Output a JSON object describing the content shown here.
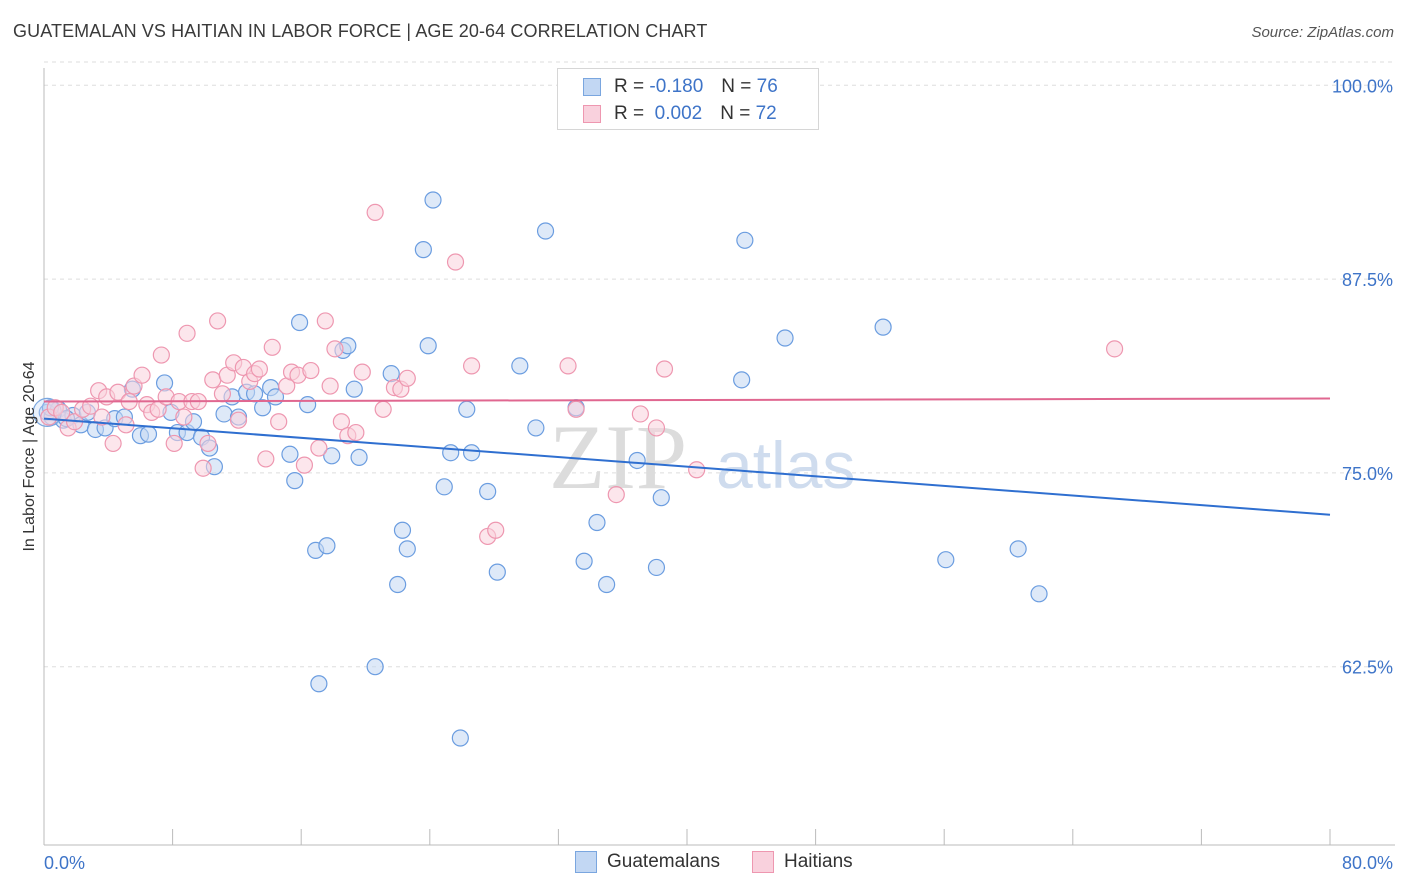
{
  "title": "GUATEMALAN VS HAITIAN IN LABOR FORCE | AGE 20-64 CORRELATION CHART",
  "source": "Source: ZipAtlas.com",
  "watermark": {
    "zip": "ZIP",
    "atlas": "atlas"
  },
  "legend": {
    "r_label": "R =",
    "n_label": "N =",
    "rows": [
      {
        "r": "-0.180",
        "n": "76",
        "color": "#a9c7ee",
        "border": "#7aa6df"
      },
      {
        "r": "0.002",
        "n": "72",
        "color": "#f8c3d2",
        "border": "#ee97b0"
      }
    ]
  },
  "bottom_legend": [
    {
      "label": "Guatemalans",
      "color": "#c2d7f3",
      "border": "#7aa6df"
    },
    {
      "label": "Haitians",
      "color": "#f9d1dd",
      "border": "#ee97b0"
    }
  ],
  "chart_data": {
    "type": "scatter",
    "title": "GUATEMALAN VS HAITIAN IN LABOR FORCE | AGE 20-64 CORRELATION CHART",
    "xlabel": "",
    "ylabel": "In Labor Force | Age 20-64",
    "xlim": [
      0,
      80
    ],
    "ylim": [
      51.0,
      101.5
    ],
    "x_tick_labels": [
      "0.0%",
      "80.0%"
    ],
    "y_ticks": [
      62.5,
      75.0,
      87.5,
      100.0
    ],
    "y_tick_labels": [
      "62.5%",
      "75.0%",
      "87.5%",
      "100.0%"
    ],
    "grid": true,
    "legend_position": "top-center",
    "series": [
      {
        "name": "Guatemalans",
        "color": "#6b9de0",
        "fill": "#c2d7f3",
        "trend": {
          "x0": 0,
          "y0": 78.5,
          "x1": 80,
          "y1": 72.3,
          "color": "#2f6fd0"
        },
        "points": [
          [
            0.2,
            78.9
          ],
          [
            0.5,
            78.6
          ],
          [
            0.9,
            79.1
          ],
          [
            1.2,
            78.4
          ],
          [
            1.8,
            78.7
          ],
          [
            2.3,
            78.1
          ],
          [
            2.7,
            78.9
          ],
          [
            3.2,
            77.8
          ],
          [
            3.8,
            77.9
          ],
          [
            4.4,
            78.5
          ],
          [
            5.0,
            78.6
          ],
          [
            5.5,
            80.4
          ],
          [
            6.0,
            77.4
          ],
          [
            6.5,
            77.5
          ],
          [
            7.5,
            80.8
          ],
          [
            7.9,
            78.9
          ],
          [
            8.3,
            77.6
          ],
          [
            8.9,
            77.6
          ],
          [
            9.3,
            78.3
          ],
          [
            9.8,
            77.3
          ],
          [
            10.3,
            76.6
          ],
          [
            10.6,
            75.4
          ],
          [
            11.2,
            78.8
          ],
          [
            11.7,
            79.9
          ],
          [
            12.1,
            78.6
          ],
          [
            12.6,
            80.2
          ],
          [
            13.1,
            80.1
          ],
          [
            13.6,
            79.2
          ],
          [
            14.1,
            80.5
          ],
          [
            14.4,
            79.9
          ],
          [
            15.3,
            76.2
          ],
          [
            15.6,
            74.5
          ],
          [
            15.9,
            84.7
          ],
          [
            16.4,
            79.4
          ],
          [
            16.9,
            70.0
          ],
          [
            17.1,
            61.4
          ],
          [
            17.6,
            70.3
          ],
          [
            17.9,
            76.1
          ],
          [
            18.6,
            82.9
          ],
          [
            18.9,
            83.2
          ],
          [
            19.3,
            80.4
          ],
          [
            19.6,
            76.0
          ],
          [
            20.6,
            62.5
          ],
          [
            21.6,
            81.4
          ],
          [
            22.0,
            67.8
          ],
          [
            22.3,
            71.3
          ],
          [
            22.6,
            70.1
          ],
          [
            23.6,
            89.4
          ],
          [
            23.9,
            83.2
          ],
          [
            24.2,
            92.6
          ],
          [
            24.9,
            74.1
          ],
          [
            25.3,
            76.3
          ],
          [
            25.9,
            57.9
          ],
          [
            26.3,
            79.1
          ],
          [
            26.6,
            76.3
          ],
          [
            27.6,
            73.8
          ],
          [
            28.2,
            68.6
          ],
          [
            29.6,
            81.9
          ],
          [
            30.6,
            77.9
          ],
          [
            31.2,
            90.6
          ],
          [
            33.1,
            79.2
          ],
          [
            33.6,
            69.3
          ],
          [
            34.4,
            71.8
          ],
          [
            35.0,
            67.8
          ],
          [
            36.9,
            75.8
          ],
          [
            38.1,
            68.9
          ],
          [
            38.4,
            73.4
          ],
          [
            43.4,
            81.0
          ],
          [
            43.6,
            90.0
          ],
          [
            46.1,
            83.7
          ],
          [
            52.2,
            84.4
          ],
          [
            56.1,
            69.4
          ],
          [
            60.6,
            70.1
          ],
          [
            61.9,
            67.2
          ],
          [
            0.4,
            79.2
          ],
          [
            1.4,
            78.5
          ]
        ]
      },
      {
        "name": "Haitians",
        "color": "#ee97b0",
        "fill": "#f9d1dd",
        "trend": {
          "x0": 0,
          "y0": 79.6,
          "x1": 80,
          "y1": 79.8,
          "color": "#e06790"
        },
        "points": [
          [
            0.3,
            78.6
          ],
          [
            0.7,
            79.2
          ],
          [
            1.1,
            78.9
          ],
          [
            1.5,
            77.9
          ],
          [
            1.9,
            78.3
          ],
          [
            2.4,
            79.1
          ],
          [
            2.9,
            79.3
          ],
          [
            3.4,
            80.3
          ],
          [
            3.6,
            78.6
          ],
          [
            3.9,
            79.9
          ],
          [
            4.3,
            76.9
          ],
          [
            4.6,
            80.2
          ],
          [
            5.1,
            78.1
          ],
          [
            5.3,
            79.6
          ],
          [
            5.6,
            80.6
          ],
          [
            6.1,
            81.3
          ],
          [
            6.4,
            79.4
          ],
          [
            6.7,
            78.9
          ],
          [
            7.1,
            79.1
          ],
          [
            7.3,
            82.6
          ],
          [
            7.6,
            79.9
          ],
          [
            8.1,
            76.9
          ],
          [
            8.4,
            79.6
          ],
          [
            8.7,
            78.6
          ],
          [
            8.9,
            84.0
          ],
          [
            9.2,
            79.6
          ],
          [
            9.6,
            79.6
          ],
          [
            9.9,
            75.3
          ],
          [
            10.2,
            76.9
          ],
          [
            10.5,
            81.0
          ],
          [
            10.8,
            84.8
          ],
          [
            11.1,
            80.1
          ],
          [
            11.4,
            81.3
          ],
          [
            11.8,
            82.1
          ],
          [
            12.1,
            78.4
          ],
          [
            12.4,
            81.8
          ],
          [
            12.8,
            80.9
          ],
          [
            13.1,
            81.4
          ],
          [
            13.4,
            81.7
          ],
          [
            13.8,
            75.9
          ],
          [
            14.2,
            83.1
          ],
          [
            14.6,
            78.3
          ],
          [
            15.1,
            80.6
          ],
          [
            15.4,
            81.5
          ],
          [
            15.8,
            81.3
          ],
          [
            16.2,
            75.5
          ],
          [
            16.6,
            81.6
          ],
          [
            17.1,
            76.6
          ],
          [
            17.5,
            84.8
          ],
          [
            17.8,
            80.6
          ],
          [
            18.1,
            83.0
          ],
          [
            18.5,
            78.3
          ],
          [
            18.9,
            77.4
          ],
          [
            19.4,
            77.6
          ],
          [
            19.8,
            81.5
          ],
          [
            20.6,
            91.8
          ],
          [
            21.1,
            79.1
          ],
          [
            21.8,
            80.5
          ],
          [
            22.2,
            80.4
          ],
          [
            22.6,
            81.1
          ],
          [
            25.6,
            88.6
          ],
          [
            26.6,
            81.9
          ],
          [
            27.6,
            70.9
          ],
          [
            28.1,
            71.3
          ],
          [
            32.6,
            81.9
          ],
          [
            33.1,
            79.1
          ],
          [
            35.6,
            73.6
          ],
          [
            37.1,
            78.8
          ],
          [
            38.1,
            77.9
          ],
          [
            38.6,
            81.7
          ],
          [
            40.6,
            75.2
          ],
          [
            66.6,
            83.0
          ]
        ]
      }
    ]
  }
}
